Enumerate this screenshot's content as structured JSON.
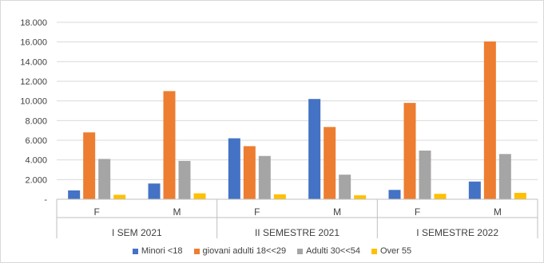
{
  "chart_data": {
    "type": "bar",
    "groups": [
      {
        "label": "I SEM 2021",
        "categories": [
          "F",
          "M"
        ]
      },
      {
        "label": "II SEMESTRE 2021",
        "categories": [
          "F",
          "M"
        ]
      },
      {
        "label": "I SEMESTRE 2022",
        "categories": [
          "F",
          "M"
        ]
      }
    ],
    "series": [
      {
        "name": "Minori <18",
        "color": "#4472c4",
        "values": [
          900,
          1600,
          6200,
          10200,
          950,
          1800
        ]
      },
      {
        "name": "giovani adulti 18<<29",
        "color": "#ed7d31",
        "values": [
          6800,
          11000,
          5400,
          7350,
          9800,
          16050
        ]
      },
      {
        "name": "Adulti 30<<54",
        "color": "#a5a5a5",
        "values": [
          4100,
          3900,
          4400,
          2500,
          4950,
          4600
        ]
      },
      {
        "name": "Over 55",
        "color": "#ffc000",
        "values": [
          450,
          600,
          500,
          400,
          550,
          650
        ]
      }
    ],
    "y_ticks": [
      "-",
      "2.000",
      "4.000",
      "6.000",
      "8.000",
      "10.000",
      "12.000",
      "14.000",
      "16.000",
      "18.000"
    ],
    "ylim": [
      0,
      18000
    ],
    "grid": true,
    "legend_position": "bottom",
    "title": "",
    "xlabel": "",
    "ylabel": ""
  }
}
